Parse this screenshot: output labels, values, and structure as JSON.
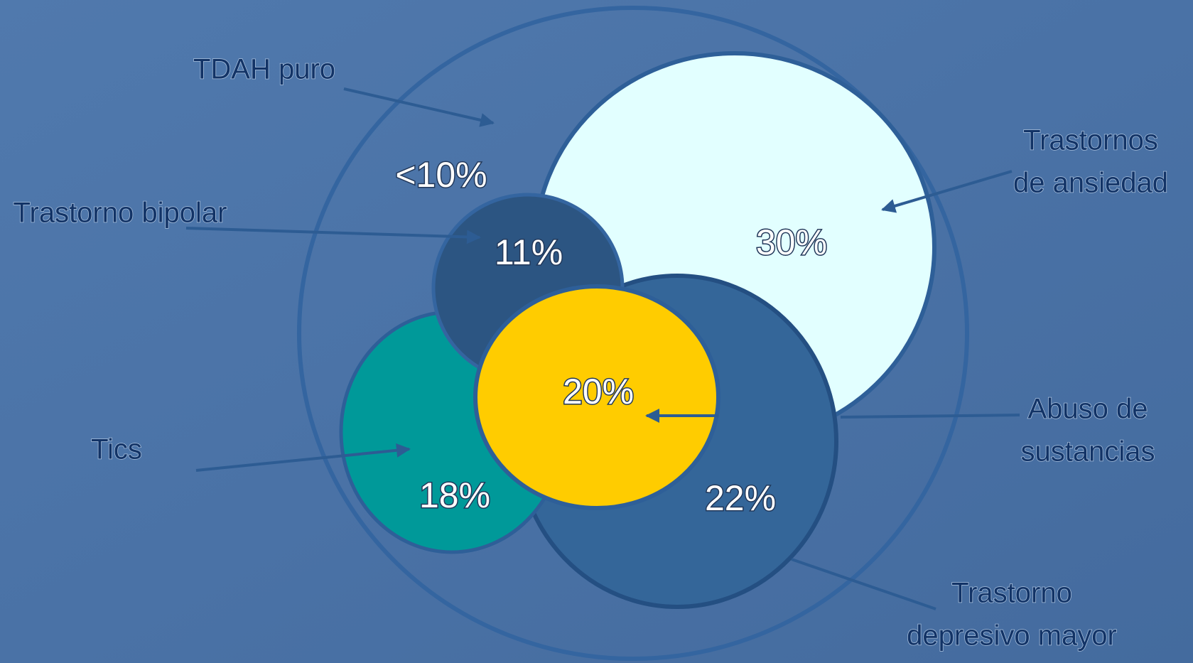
{
  "nodes": [
    {
      "label_lines": [
        "TDAH puro"
      ],
      "value": "<10%"
    },
    {
      "label_lines": [
        "Trastornos",
        "de ansiedad"
      ],
      "value": "30%"
    },
    {
      "label_lines": [
        "Trastorno bipolar"
      ],
      "value": "11%"
    },
    {
      "label_lines": [
        "Tics"
      ],
      "value": "18%"
    },
    {
      "label_lines": [
        "Abuso de",
        "sustancias"
      ],
      "value": "20%"
    },
    {
      "label_lines": [
        "Trastorno",
        "depresivo mayor"
      ],
      "value": "22%"
    }
  ]
}
